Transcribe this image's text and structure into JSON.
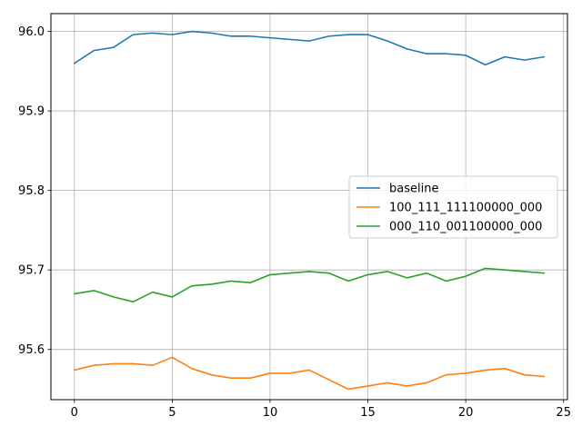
{
  "chart_data": {
    "type": "line",
    "title": "",
    "xlabel": "",
    "ylabel": "",
    "xlim": [
      -1.2,
      25.2
    ],
    "ylim": [
      95.5368,
      96.0224
    ],
    "xticks": [
      0,
      5,
      10,
      15,
      20,
      25
    ],
    "yticks": [
      95.6,
      95.7,
      95.8,
      95.9,
      96.0
    ],
    "ytick_labels": [
      "95.6",
      "95.7",
      "95.8",
      "95.9",
      "96.0"
    ],
    "grid": true,
    "legend_position": "center-right",
    "x": [
      0,
      1,
      2,
      3,
      4,
      5,
      6,
      7,
      8,
      9,
      10,
      11,
      12,
      13,
      14,
      15,
      16,
      17,
      18,
      19,
      20,
      21,
      22,
      23,
      24
    ],
    "series": [
      {
        "name": "baseline",
        "color": "#1f77b4",
        "values": [
          95.96,
          95.976,
          95.98,
          95.996,
          95.998,
          95.996,
          96.0,
          95.998,
          95.994,
          95.994,
          95.992,
          95.99,
          95.988,
          95.994,
          95.996,
          95.996,
          95.988,
          95.978,
          95.972,
          95.972,
          95.97,
          95.958,
          95.968,
          95.964,
          95.968
        ]
      },
      {
        "name": "100_111_111100000_000",
        "color": "#ff7f0e",
        "values": [
          95.574,
          95.58,
          95.582,
          95.582,
          95.58,
          95.59,
          95.576,
          95.568,
          95.564,
          95.564,
          95.57,
          95.57,
          95.574,
          95.562,
          95.55,
          95.554,
          95.558,
          95.554,
          95.558,
          95.568,
          95.57,
          95.574,
          95.576,
          95.568,
          95.566
        ]
      },
      {
        "name": "000_110_001100000_000",
        "color": "#2ca02c",
        "values": [
          95.67,
          95.674,
          95.666,
          95.66,
          95.672,
          95.666,
          95.68,
          95.682,
          95.686,
          95.684,
          95.694,
          95.696,
          95.698,
          95.696,
          95.686,
          95.694,
          95.698,
          95.69,
          95.696,
          95.686,
          95.692,
          95.702,
          95.7,
          95.698,
          95.696
        ]
      }
    ]
  }
}
